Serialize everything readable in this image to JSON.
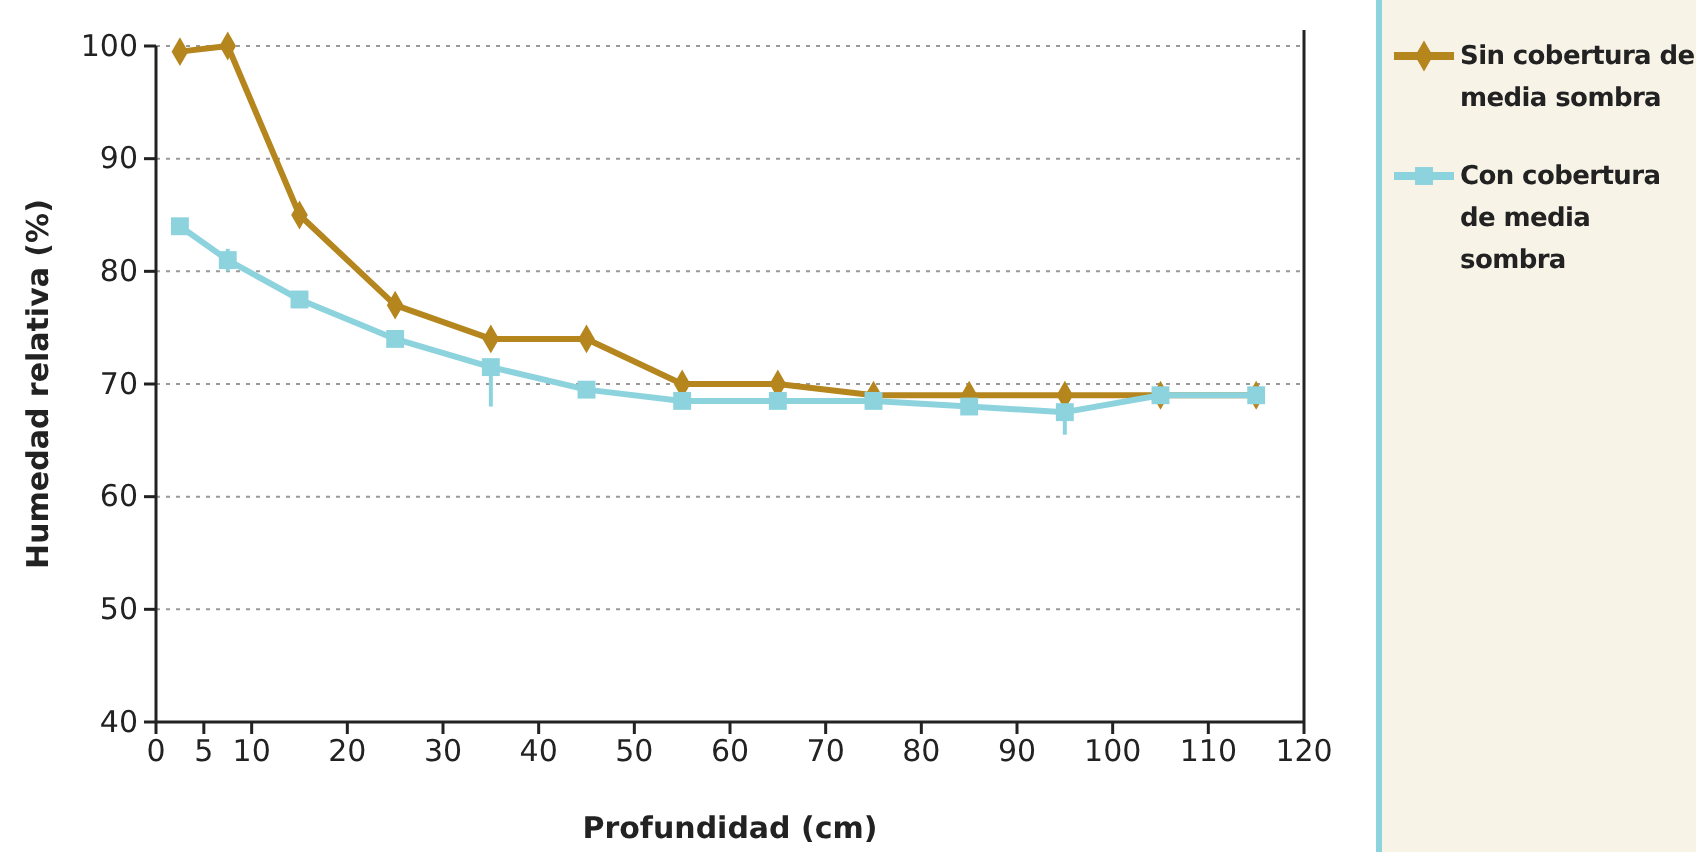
{
  "chart_data": {
    "type": "line",
    "xlabel": "Profundidad (cm)",
    "ylabel": "Humedad relativa (%)",
    "x": [
      2.5,
      7.5,
      15,
      25,
      35,
      45,
      55,
      65,
      75,
      85,
      95,
      105,
      115
    ],
    "xlim": [
      0,
      120
    ],
    "xticks": [
      0,
      5,
      10,
      20,
      30,
      40,
      50,
      60,
      70,
      80,
      90,
      100,
      110,
      120
    ],
    "ylim": [
      40,
      100
    ],
    "yticks": [
      40,
      50,
      60,
      70,
      80,
      90,
      100
    ],
    "grid": "y",
    "legend": "right",
    "line_style": "solid",
    "series": [
      {
        "name": "Sin cobertura de media sombra",
        "color": "#b5861e",
        "marker": "diamond",
        "values": [
          99.5,
          100,
          85,
          77,
          74,
          74,
          70,
          70,
          69,
          69,
          69,
          69,
          69
        ]
      },
      {
        "name": "Con cobertura de media sombra",
        "color": "#8dd3de",
        "marker": "square",
        "values": [
          84,
          81,
          77.5,
          74,
          71.5,
          69.5,
          68.5,
          68.5,
          68.5,
          68,
          67.5,
          69,
          69
        ],
        "errors": [
          null,
          [
            80,
            82
          ],
          null,
          null,
          [
            68,
            72
          ],
          null,
          null,
          null,
          null,
          null,
          [
            65.5,
            68
          ],
          null,
          null
        ]
      }
    ]
  }
}
